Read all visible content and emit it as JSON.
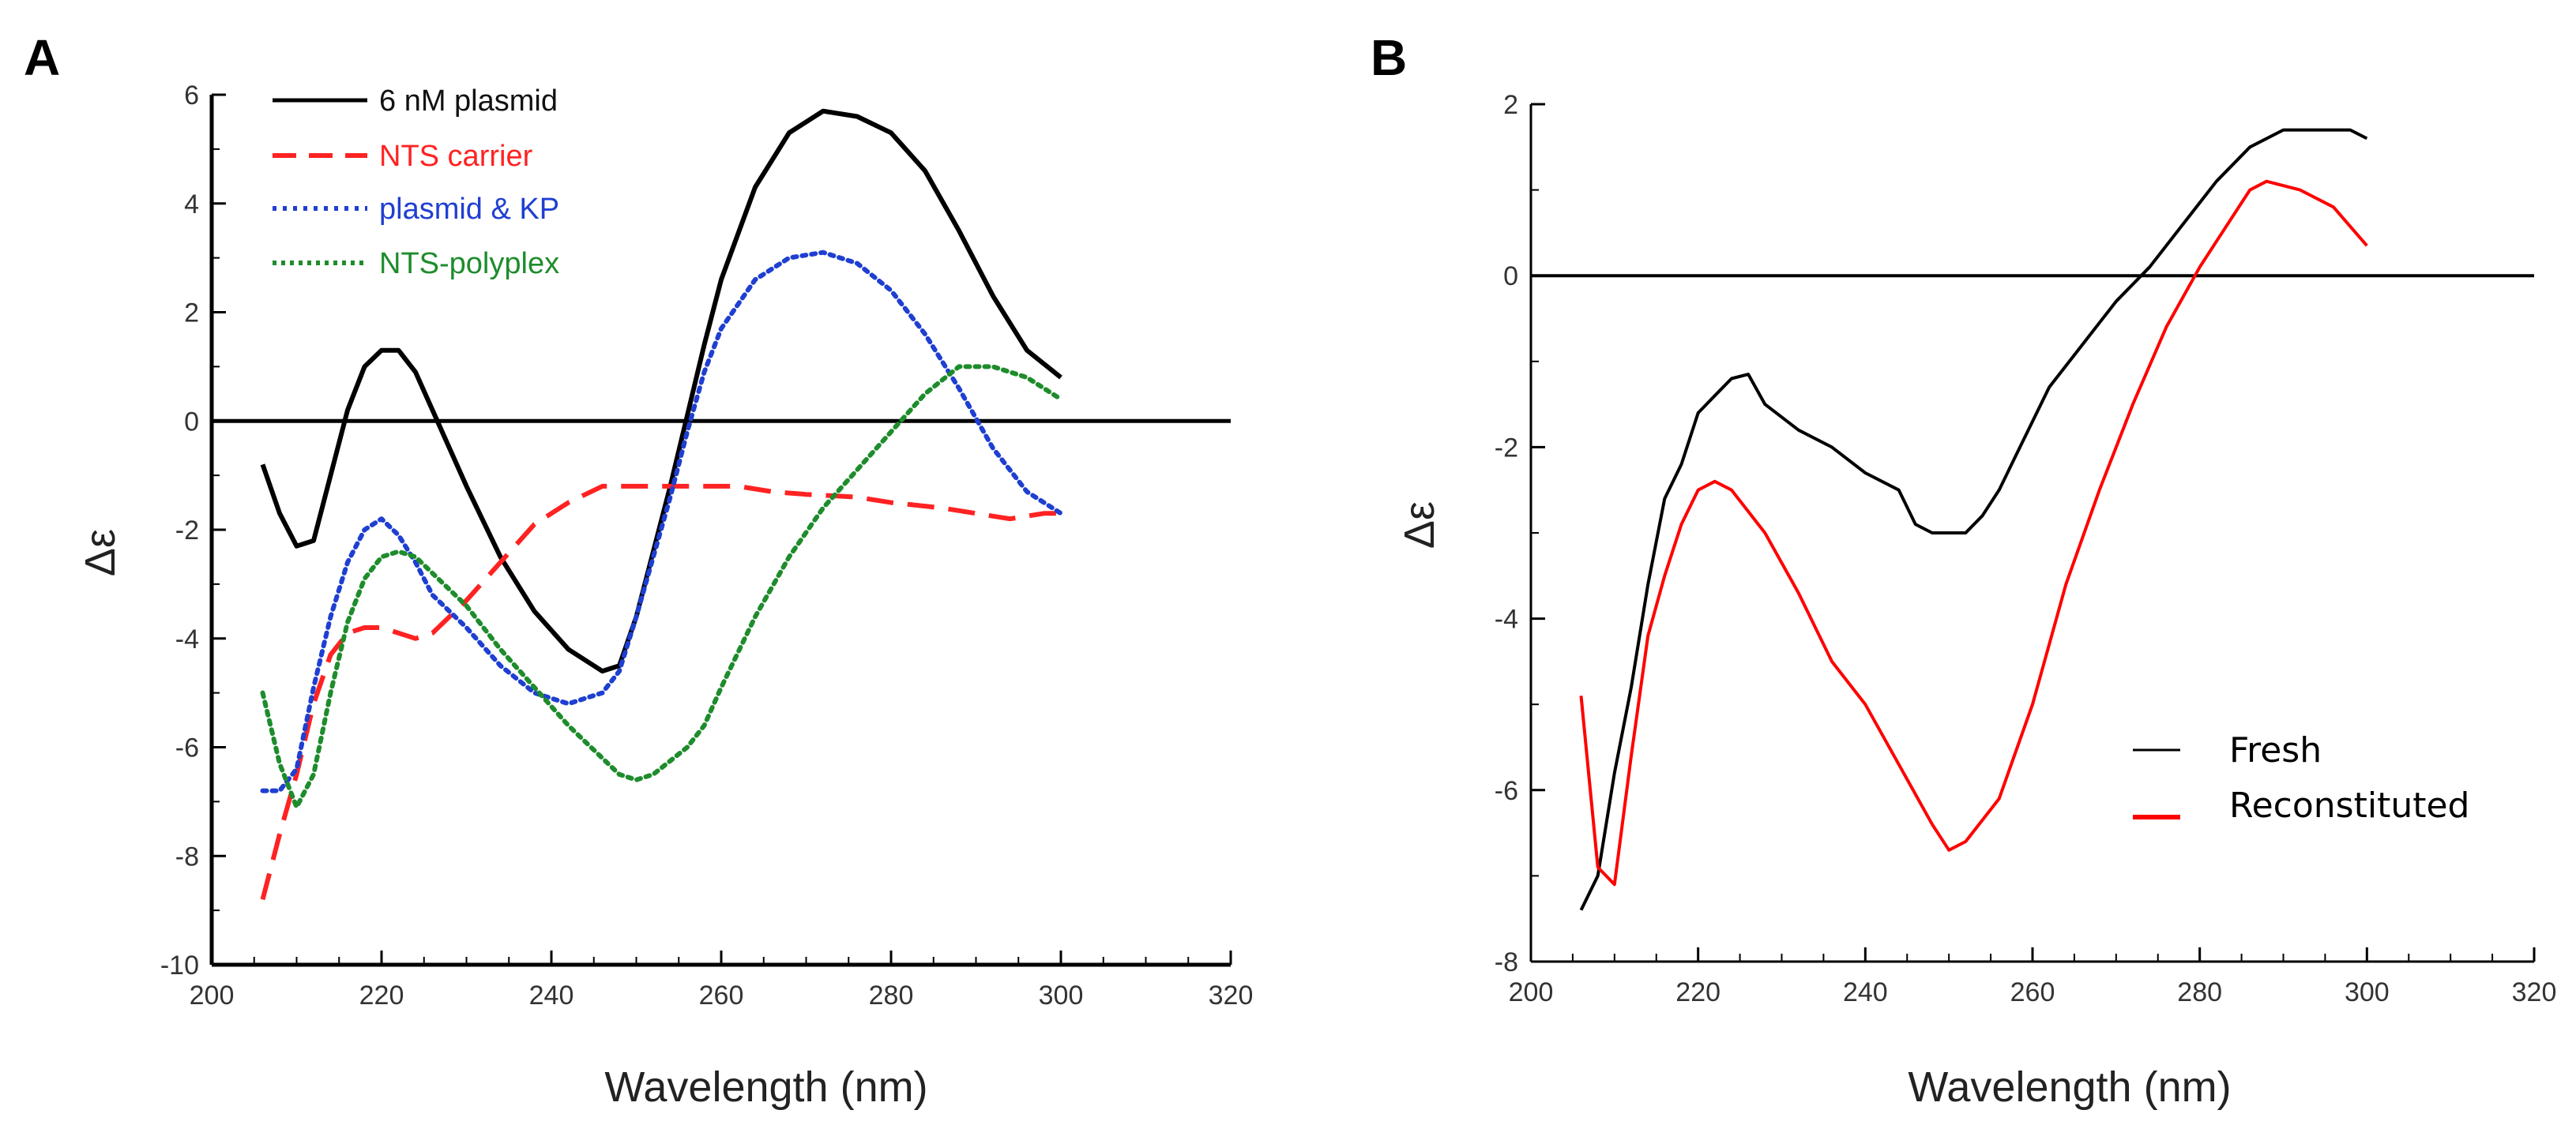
{
  "chart_data": [
    {
      "panel": "A",
      "type": "line",
      "xlabel": "Wavelength (nm)",
      "ylabel": "Δε",
      "xlim": [
        200,
        320
      ],
      "ylim": [
        -10,
        6
      ],
      "xticks": [
        200,
        220,
        240,
        260,
        280,
        300,
        320
      ],
      "yticks": [
        6,
        4,
        2,
        0,
        -2,
        -4,
        -6,
        -8,
        -10
      ],
      "zero_line": true,
      "legend_position": "top-left",
      "series": [
        {
          "name": "6 nM plasmid",
          "color": "#000000",
          "style": "solid",
          "points": [
            [
              206,
              -0.8
            ],
            [
              208,
              -1.7
            ],
            [
              210,
              -2.3
            ],
            [
              212,
              -2.2
            ],
            [
              214,
              -1.0
            ],
            [
              216,
              0.2
            ],
            [
              218,
              1.0
            ],
            [
              220,
              1.3
            ],
            [
              222,
              1.3
            ],
            [
              224,
              0.9
            ],
            [
              226,
              0.2
            ],
            [
              230,
              -1.2
            ],
            [
              234,
              -2.5
            ],
            [
              238,
              -3.5
            ],
            [
              242,
              -4.2
            ],
            [
              246,
              -4.6
            ],
            [
              248,
              -4.5
            ],
            [
              250,
              -3.6
            ],
            [
              252,
              -2.4
            ],
            [
              254,
              -1.2
            ],
            [
              256,
              0.1
            ],
            [
              258,
              1.4
            ],
            [
              260,
              2.6
            ],
            [
              264,
              4.3
            ],
            [
              268,
              5.3
            ],
            [
              272,
              5.7
            ],
            [
              276,
              5.6
            ],
            [
              280,
              5.3
            ],
            [
              284,
              4.6
            ],
            [
              288,
              3.5
            ],
            [
              292,
              2.3
            ],
            [
              296,
              1.3
            ],
            [
              300,
              0.8
            ]
          ]
        },
        {
          "name": "NTS carrier",
          "color": "#ff2222",
          "style": "dash",
          "points": [
            [
              206,
              -8.8
            ],
            [
              208,
              -7.6
            ],
            [
              210,
              -6.5
            ],
            [
              212,
              -5.2
            ],
            [
              214,
              -4.3
            ],
            [
              216,
              -3.9
            ],
            [
              218,
              -3.8
            ],
            [
              220,
              -3.8
            ],
            [
              222,
              -3.9
            ],
            [
              224,
              -4.0
            ],
            [
              226,
              -3.9
            ],
            [
              230,
              -3.3
            ],
            [
              234,
              -2.6
            ],
            [
              238,
              -1.9
            ],
            [
              242,
              -1.5
            ],
            [
              246,
              -1.2
            ],
            [
              250,
              -1.2
            ],
            [
              256,
              -1.2
            ],
            [
              262,
              -1.2
            ],
            [
              266,
              -1.3
            ],
            [
              270,
              -1.35
            ],
            [
              276,
              -1.4
            ],
            [
              280,
              -1.5
            ],
            [
              286,
              -1.6
            ],
            [
              290,
              -1.7
            ],
            [
              294,
              -1.8
            ],
            [
              298,
              -1.7
            ],
            [
              300,
              -1.7
            ]
          ]
        },
        {
          "name": "plasmid & KP",
          "color": "#1f3fd1",
          "style": "dot",
          "points": [
            [
              206,
              -6.8
            ],
            [
              208,
              -6.8
            ],
            [
              210,
              -6.4
            ],
            [
              212,
              -4.9
            ],
            [
              214,
              -3.6
            ],
            [
              216,
              -2.6
            ],
            [
              218,
              -2.0
            ],
            [
              220,
              -1.8
            ],
            [
              222,
              -2.1
            ],
            [
              224,
              -2.6
            ],
            [
              226,
              -3.2
            ],
            [
              230,
              -3.8
            ],
            [
              234,
              -4.5
            ],
            [
              238,
              -5.0
            ],
            [
              242,
              -5.2
            ],
            [
              246,
              -5.0
            ],
            [
              248,
              -4.6
            ],
            [
              250,
              -3.6
            ],
            [
              252,
              -2.5
            ],
            [
              254,
              -1.4
            ],
            [
              256,
              -0.2
            ],
            [
              258,
              0.9
            ],
            [
              260,
              1.7
            ],
            [
              264,
              2.6
            ],
            [
              268,
              3.0
            ],
            [
              272,
              3.1
            ],
            [
              276,
              2.9
            ],
            [
              280,
              2.4
            ],
            [
              284,
              1.6
            ],
            [
              288,
              0.6
            ],
            [
              292,
              -0.5
            ],
            [
              296,
              -1.3
            ],
            [
              300,
              -1.7
            ]
          ]
        },
        {
          "name": "NTS-polyplex",
          "color": "#1e8c2c",
          "style": "dot",
          "points": [
            [
              206,
              -5.0
            ],
            [
              208,
              -6.3
            ],
            [
              210,
              -7.1
            ],
            [
              212,
              -6.5
            ],
            [
              214,
              -5.0
            ],
            [
              216,
              -3.7
            ],
            [
              218,
              -2.9
            ],
            [
              220,
              -2.5
            ],
            [
              222,
              -2.4
            ],
            [
              224,
              -2.5
            ],
            [
              226,
              -2.8
            ],
            [
              230,
              -3.4
            ],
            [
              234,
              -4.2
            ],
            [
              238,
              -4.9
            ],
            [
              242,
              -5.6
            ],
            [
              246,
              -6.2
            ],
            [
              248,
              -6.5
            ],
            [
              250,
              -6.6
            ],
            [
              252,
              -6.5
            ],
            [
              256,
              -6.0
            ],
            [
              258,
              -5.6
            ],
            [
              260,
              -4.9
            ],
            [
              264,
              -3.6
            ],
            [
              268,
              -2.5
            ],
            [
              272,
              -1.6
            ],
            [
              276,
              -0.9
            ],
            [
              280,
              -0.2
            ],
            [
              284,
              0.5
            ],
            [
              288,
              1.0
            ],
            [
              292,
              1.0
            ],
            [
              296,
              0.8
            ],
            [
              300,
              0.4
            ]
          ]
        }
      ]
    },
    {
      "panel": "B",
      "type": "line",
      "xlabel": "Wavelength (nm)",
      "ylabel": "Δε",
      "xlim": [
        200,
        320
      ],
      "ylim": [
        -8,
        2
      ],
      "xticks": [
        200,
        220,
        240,
        260,
        280,
        300,
        320
      ],
      "yticks": [
        2,
        0,
        -2,
        -4,
        -6,
        -8
      ],
      "zero_line": true,
      "legend_position": "bottom-right",
      "series": [
        {
          "name": "Fresh",
          "color": "#000000",
          "style": "solid",
          "points": [
            [
              206,
              -7.4
            ],
            [
              208,
              -7.0
            ],
            [
              210,
              -5.8
            ],
            [
              212,
              -4.8
            ],
            [
              214,
              -3.6
            ],
            [
              216,
              -2.6
            ],
            [
              218,
              -2.2
            ],
            [
              220,
              -1.6
            ],
            [
              222,
              -1.4
            ],
            [
              224,
              -1.2
            ],
            [
              226,
              -1.15
            ],
            [
              228,
              -1.5
            ],
            [
              232,
              -1.8
            ],
            [
              236,
              -2.0
            ],
            [
              240,
              -2.3
            ],
            [
              244,
              -2.5
            ],
            [
              246,
              -2.9
            ],
            [
              248,
              -3.0
            ],
            [
              250,
              -3.0
            ],
            [
              252,
              -3.0
            ],
            [
              254,
              -2.8
            ],
            [
              256,
              -2.5
            ],
            [
              258,
              -2.1
            ],
            [
              262,
              -1.3
            ],
            [
              266,
              -0.8
            ],
            [
              270,
              -0.3
            ],
            [
              274,
              0.1
            ],
            [
              278,
              0.6
            ],
            [
              282,
              1.1
            ],
            [
              286,
              1.5
            ],
            [
              290,
              1.7
            ],
            [
              294,
              1.7
            ],
            [
              298,
              1.7
            ],
            [
              300,
              1.6
            ]
          ]
        },
        {
          "name": "Reconstituted",
          "color": "#ff0000",
          "style": "solid",
          "points": [
            [
              206,
              -4.9
            ],
            [
              208,
              -6.9
            ],
            [
              210,
              -7.1
            ],
            [
              212,
              -5.6
            ],
            [
              214,
              -4.2
            ],
            [
              216,
              -3.5
            ],
            [
              218,
              -2.9
            ],
            [
              220,
              -2.5
            ],
            [
              222,
              -2.4
            ],
            [
              224,
              -2.5
            ],
            [
              228,
              -3.0
            ],
            [
              232,
              -3.7
            ],
            [
              236,
              -4.5
            ],
            [
              240,
              -5.0
            ],
            [
              244,
              -5.7
            ],
            [
              248,
              -6.4
            ],
            [
              250,
              -6.7
            ],
            [
              252,
              -6.6
            ],
            [
              256,
              -6.1
            ],
            [
              260,
              -5.0
            ],
            [
              264,
              -3.6
            ],
            [
              268,
              -2.5
            ],
            [
              272,
              -1.5
            ],
            [
              276,
              -0.6
            ],
            [
              280,
              0.1
            ],
            [
              282,
              0.4
            ],
            [
              286,
              1.0
            ],
            [
              288,
              1.1
            ],
            [
              292,
              1.0
            ],
            [
              296,
              0.8
            ],
            [
              300,
              0.35
            ]
          ]
        }
      ]
    }
  ],
  "panels": {
    "a": {
      "letter": "A",
      "xlabel": "Wavelength (nm)",
      "ylabel": "Δε",
      "legend": [
        "6 nM plasmid",
        "NTS carrier",
        "plasmid & KP",
        "NTS-polyplex"
      ]
    },
    "b": {
      "letter": "B",
      "xlabel": "Wavelength (nm)",
      "ylabel": "Δε",
      "legend": [
        "Fresh",
        "Reconstituted"
      ]
    }
  }
}
